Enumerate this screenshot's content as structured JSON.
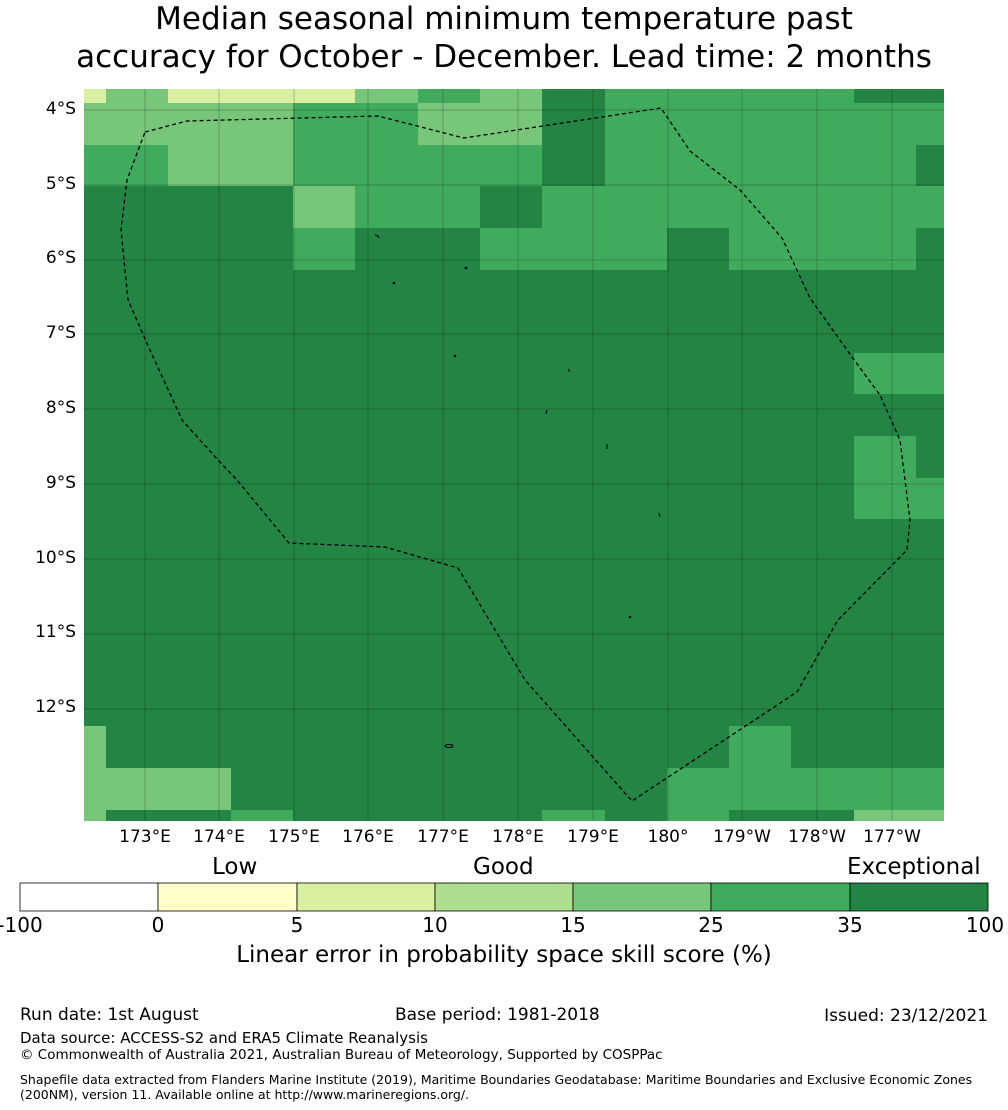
{
  "title": {
    "line1": "Median seasonal minimum temperature past",
    "line2": "accuracy for October - December. Lead time: 2 months"
  },
  "map": {
    "lat_labels": [
      "4°S",
      "5°S",
      "6°S",
      "7°S",
      "8°S",
      "9°S",
      "10°S",
      "11°S",
      "12°S"
    ],
    "lon_labels": [
      "173°E",
      "174°E",
      "175°E",
      "176°E",
      "177°E",
      "178°E",
      "179°E",
      "180°",
      "179°W",
      "178°W",
      "177°W"
    ],
    "boundary_style": "dashed",
    "colors": {
      "c5": "#d9f0a3",
      "c10": "#addd8e",
      "c15": "#78c679",
      "c25": "#41ab5d",
      "c35": "#238443"
    }
  },
  "colorbar": {
    "categories": [
      "Low",
      "Good",
      "Exceptional"
    ],
    "ticks": [
      "-100",
      "0",
      "5",
      "10",
      "15",
      "25",
      "35",
      "100"
    ],
    "colors": [
      "#ffffff",
      "#ffffcc",
      "#d9f0a3",
      "#addd8e",
      "#78c679",
      "#41ab5d",
      "#238443"
    ],
    "label": "Linear error in probability space skill score (%)"
  },
  "footer": {
    "run_date": "Run date: 1st August",
    "base_period": "Base period: 1981-2018",
    "issued": "Issued: 23/12/2021",
    "data_source": "Data source: ACCESS-S2 and ERA5 Climate Reanalysis",
    "copyright": "© Commonwealth of Australia 2021, Australian Bureau of Meteorology, Supported by COSPPac",
    "shapefile": "Shapefile data extracted from Flanders Marine Institute (2019), Maritime Boundaries Geodatabase: Maritime Boundaries and Exclusive Economic Zones (200NM), version 11. Available online at http://www.marineregions.org/."
  }
}
